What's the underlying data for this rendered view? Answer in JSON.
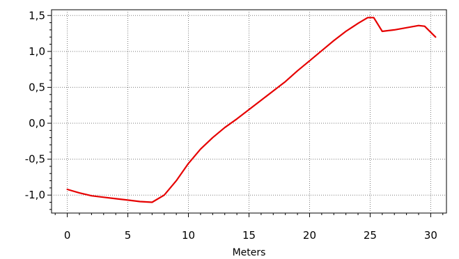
{
  "chart_data": {
    "type": "line",
    "xlabel": "Meters",
    "ylabel": "",
    "xlim": [
      -1.3,
      31.3
    ],
    "ylim": [
      -1.25,
      1.58
    ],
    "x_ticks": [
      0,
      5,
      10,
      15,
      20,
      25,
      30
    ],
    "x_tick_labels": [
      "0",
      "5",
      "10",
      "15",
      "20",
      "25",
      "30"
    ],
    "y_ticks": [
      -1.0,
      -0.5,
      0.0,
      0.5,
      1.0,
      1.5
    ],
    "y_tick_labels": [
      "-1,0",
      "-0,5",
      "0,0",
      "0,5",
      "1,0",
      "1,5"
    ],
    "grid": true,
    "line_color": "#e60000",
    "series": [
      {
        "x": [
          0,
          1,
          2,
          3,
          4,
          5,
          6,
          7,
          8,
          9,
          10,
          11,
          12,
          13,
          14,
          15,
          16,
          17,
          18,
          19,
          20,
          21,
          22,
          23,
          24,
          24.8,
          25.3,
          26,
          27,
          28,
          29,
          29.5,
          30.4
        ],
        "y": [
          -0.92,
          -0.97,
          -1.01,
          -1.03,
          -1.05,
          -1.07,
          -1.09,
          -1.1,
          -1.0,
          -0.8,
          -0.56,
          -0.36,
          -0.2,
          -0.06,
          0.06,
          0.19,
          0.32,
          0.45,
          0.58,
          0.73,
          0.87,
          1.01,
          1.15,
          1.28,
          1.39,
          1.47,
          1.47,
          1.28,
          1.3,
          1.33,
          1.36,
          1.35,
          1.2
        ]
      }
    ]
  }
}
